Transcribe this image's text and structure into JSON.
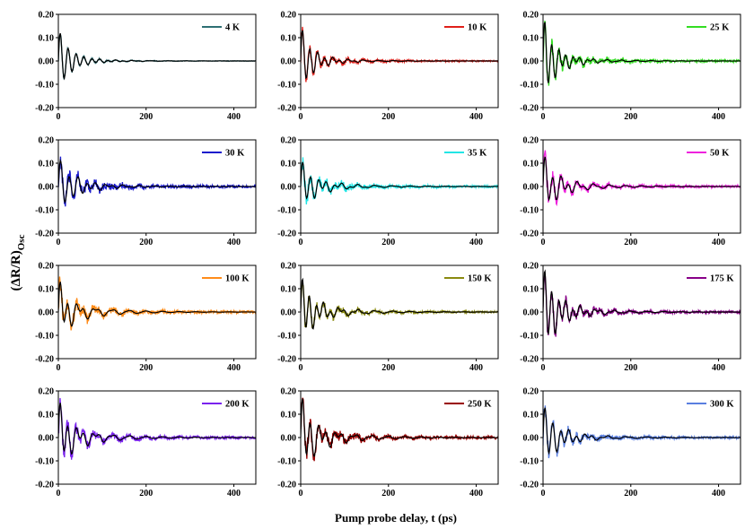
{
  "chart_data": {
    "type": "line",
    "layout": "4x3 grid of panels",
    "xlabel": "Pump probe delay, t (ps)",
    "ylabel": {
      "base": "(ΔR/R)",
      "subscript": "Osc"
    },
    "xlim": [
      0,
      450
    ],
    "ylim": [
      -0.2,
      0.2
    ],
    "xticks": [
      "0",
      "200",
      "400"
    ],
    "yticks": [
      "0.20",
      "0.10",
      "0.00",
      "-0.10",
      "-0.20"
    ],
    "fit_color": "#000000",
    "panels": [
      {
        "name": "4 K",
        "color": "#2e6f73",
        "noise": 0.006,
        "model": [
          [
            0.09,
            18,
            18,
            0
          ],
          [
            0.05,
            45,
            18,
            0
          ],
          [
            0.006,
            110,
            40,
            0
          ]
        ]
      },
      {
        "name": "10 K",
        "color": "#e0201a",
        "noise": 0.02,
        "model": [
          [
            0.08,
            15,
            17,
            0
          ],
          [
            0.07,
            38,
            17,
            0
          ],
          [
            0.015,
            95,
            34,
            0
          ]
        ]
      },
      {
        "name": "25 K",
        "color": "#33dd22",
        "noise": 0.03,
        "model": [
          [
            0.1,
            14,
            16,
            0
          ],
          [
            0.09,
            40,
            16,
            0
          ],
          [
            0.02,
            100,
            34,
            0
          ]
        ]
      },
      {
        "name": "30 K",
        "color": "#1a1acc",
        "noise": 0.035,
        "model": [
          [
            0.05,
            18,
            20,
            0
          ],
          [
            0.07,
            48,
            20,
            0
          ],
          [
            0.015,
            120,
            35,
            0
          ]
        ]
      },
      {
        "name": "35 K",
        "color": "#22e5e5",
        "noise": 0.03,
        "model": [
          [
            0.04,
            15,
            20,
            0
          ],
          [
            0.07,
            42,
            18,
            0
          ],
          [
            0.02,
            110,
            40,
            0
          ]
        ]
      },
      {
        "name": "50 K",
        "color": "#ee22dd",
        "noise": 0.03,
        "model": [
          [
            0.06,
            15,
            18,
            0
          ],
          [
            0.07,
            42,
            18,
            0
          ],
          [
            0.03,
            95,
            36,
            0
          ]
        ]
      },
      {
        "name": "100 K",
        "color": "#ff8c1a",
        "noise": 0.035,
        "model": [
          [
            0.07,
            14,
            17,
            0
          ],
          [
            0.06,
            40,
            18,
            0
          ],
          [
            0.04,
            90,
            38,
            0
          ]
        ]
      },
      {
        "name": "150 K",
        "color": "#8a8a10",
        "noise": 0.025,
        "model": [
          [
            0.07,
            15,
            16,
            0
          ],
          [
            0.08,
            42,
            16,
            0
          ],
          [
            0.03,
            100,
            40,
            0
          ]
        ]
      },
      {
        "name": "175 K",
        "color": "#880088",
        "noise": 0.03,
        "model": [
          [
            0.07,
            14,
            16,
            0
          ],
          [
            0.12,
            42,
            16,
            0
          ],
          [
            0.03,
            100,
            38,
            0
          ]
        ]
      },
      {
        "name": "200 K",
        "color": "#7a22ee",
        "noise": 0.035,
        "model": [
          [
            0.06,
            14,
            16,
            0
          ],
          [
            0.09,
            40,
            18,
            0
          ],
          [
            0.04,
            95,
            38,
            0
          ]
        ]
      },
      {
        "name": "250 K",
        "color": "#990000",
        "noise": 0.035,
        "model": [
          [
            0.06,
            14,
            16,
            0
          ],
          [
            0.11,
            42,
            18,
            0
          ],
          [
            0.04,
            100,
            38,
            0
          ]
        ]
      },
      {
        "name": "300 K",
        "color": "#5a7fe0",
        "noise": 0.03,
        "model": [
          [
            0.06,
            15,
            18,
            0
          ],
          [
            0.08,
            45,
            18,
            0
          ],
          [
            0.02,
            110,
            45,
            0
          ]
        ]
      }
    ]
  }
}
